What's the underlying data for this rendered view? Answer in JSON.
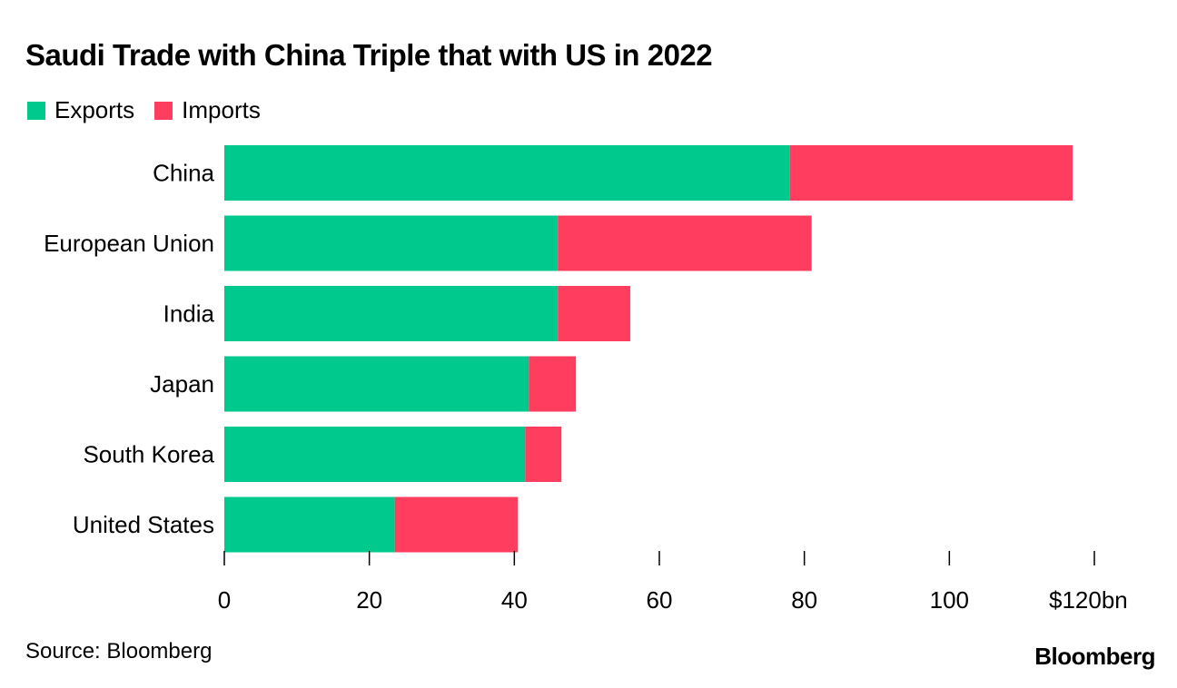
{
  "title": "Saudi Trade with China Triple that with US in 2022",
  "source": "Source: Bloomberg",
  "brand": "Bloomberg",
  "colors": {
    "exports": "#00c98d",
    "imports": "#ff3d5f"
  },
  "chart_data": {
    "type": "bar",
    "orientation": "horizontal",
    "stacked": true,
    "title": "Saudi Trade with China Triple that with US in 2022",
    "categories": [
      "China",
      "European Union",
      "India",
      "Japan",
      "South Korea",
      "United States"
    ],
    "series": [
      {
        "name": "Exports",
        "values": [
          78,
          46,
          46,
          42,
          41.5,
          23.5
        ]
      },
      {
        "name": "Imports",
        "values": [
          39,
          35,
          10,
          6.5,
          5,
          17
        ]
      }
    ],
    "xlim": [
      0,
      120
    ],
    "x_ticks": [
      0,
      20,
      40,
      60,
      80,
      100,
      120
    ],
    "x_tick_labels": [
      "0",
      "20",
      "40",
      "60",
      "80",
      "100",
      "$120bn"
    ],
    "legend_position": "top-left",
    "grid": false
  }
}
